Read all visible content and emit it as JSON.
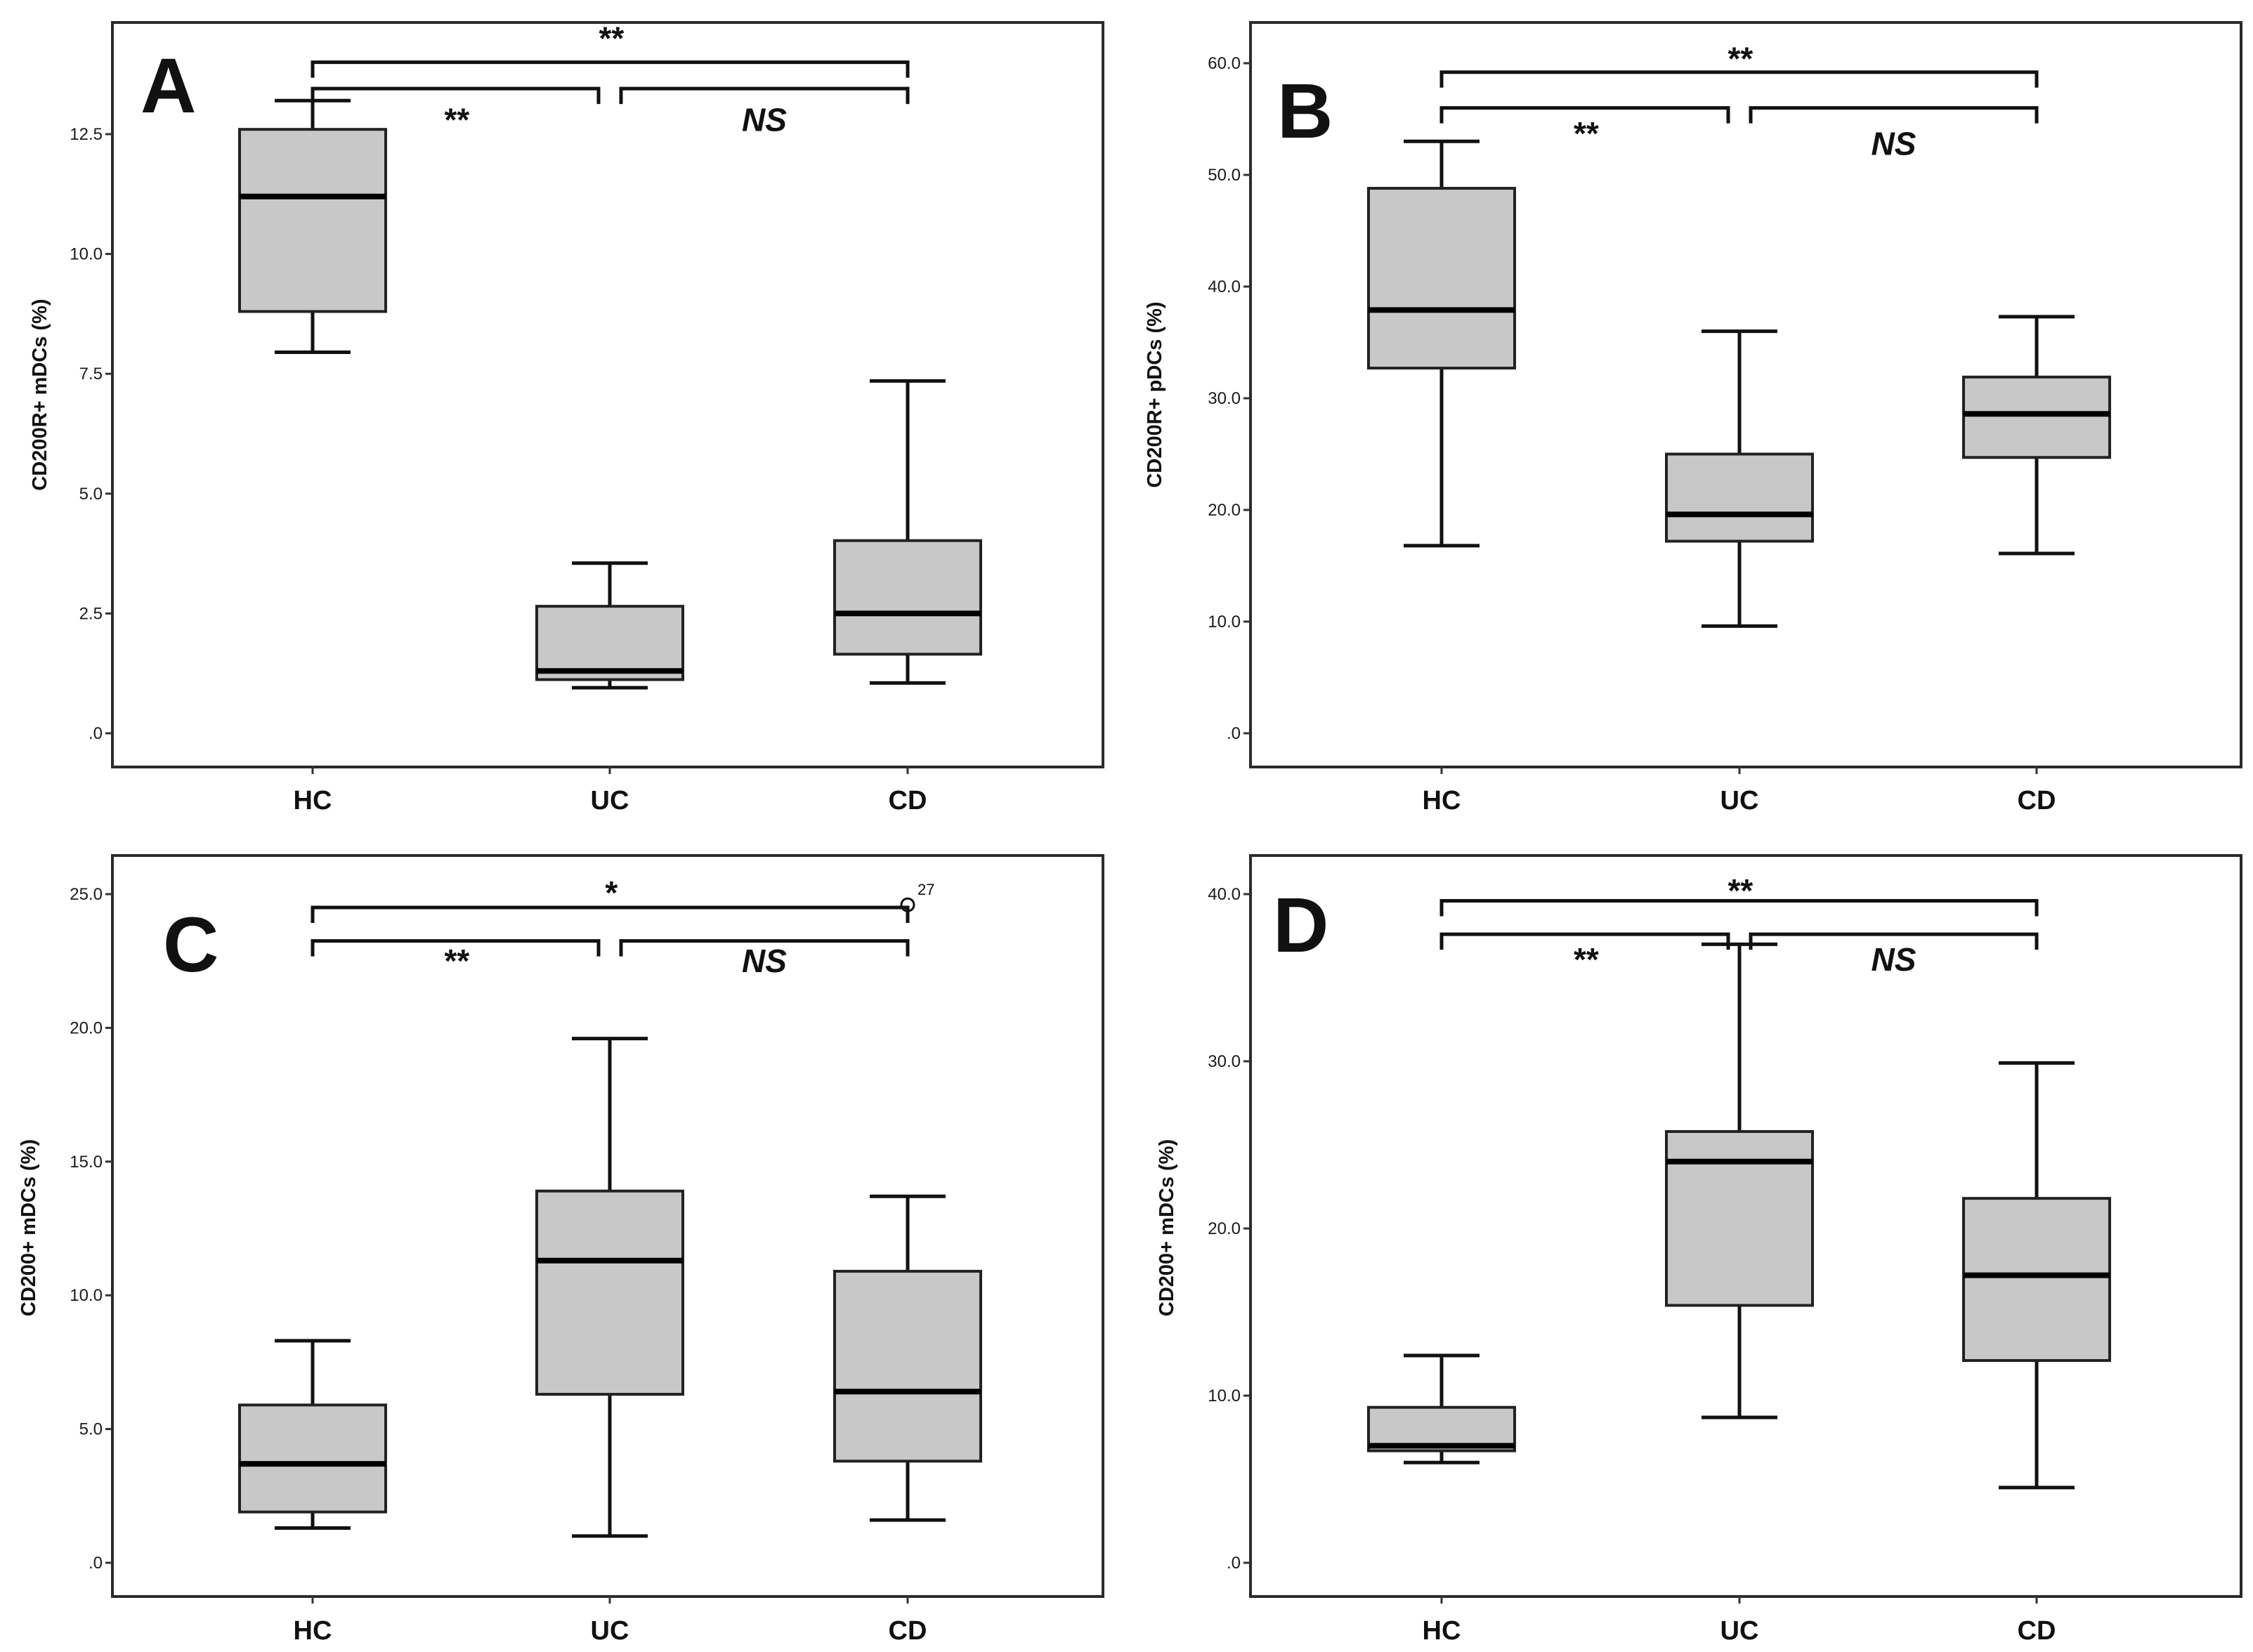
{
  "chart_data": [
    {
      "type": "boxplot",
      "panel": "A",
      "ylabel": "CD200R+ mDCs (%)",
      "ylim": [
        0,
        15
      ],
      "ticks": [
        0,
        2.5,
        5,
        7.5,
        10,
        12.5
      ],
      "tick_labels": [
        ".0",
        "2.5",
        "5.0",
        "7.5",
        "10.0",
        "12.5"
      ],
      "categories": [
        "HC",
        "UC",
        "CD"
      ],
      "boxes": [
        {
          "category": "HC",
          "min": 7.95,
          "q1": 8.8,
          "median": 11.2,
          "q3": 12.6,
          "max": 13.2
        },
        {
          "category": "UC",
          "min": 0.95,
          "q1": 1.12,
          "median": 1.3,
          "q3": 2.65,
          "max": 3.55
        },
        {
          "category": "CD",
          "min": 1.05,
          "q1": 1.65,
          "median": 2.5,
          "q3": 4.02,
          "max": 7.35
        }
      ],
      "outliers": [],
      "significance": [
        {
          "from": "HC",
          "to": "CD",
          "label": "**",
          "bracket_y": 14.0,
          "label_y": 14.5
        },
        {
          "from": "HC",
          "to": "UC",
          "label": "**",
          "bracket_y": 13.45,
          "label_y": 12.8
        },
        {
          "from": "UC",
          "to": "CD",
          "label": "NS",
          "bracket_y": 13.45,
          "label_y": 12.8
        }
      ]
    },
    {
      "type": "boxplot",
      "panel": "B",
      "ylabel": "CD200R+ pDCs (%)",
      "ylim": [
        0,
        63
      ],
      "ticks": [
        0,
        10,
        20,
        30,
        40,
        50,
        60
      ],
      "tick_labels": [
        ".0",
        "10.0",
        "20.0",
        "30.0",
        "40.0",
        "50.0",
        "60.0"
      ],
      "categories": [
        "HC",
        "UC",
        "CD"
      ],
      "boxes": [
        {
          "category": "HC",
          "min": 16.8,
          "q1": 32.7,
          "median": 37.9,
          "q3": 48.8,
          "max": 53.0
        },
        {
          "category": "UC",
          "min": 9.6,
          "q1": 17.2,
          "median": 19.6,
          "q3": 25.0,
          "max": 36.0
        },
        {
          "category": "CD",
          "min": 16.1,
          "q1": 24.7,
          "median": 28.6,
          "q3": 31.9,
          "max": 37.3
        }
      ],
      "outliers": [],
      "significance": [
        {
          "from": "HC",
          "to": "CD",
          "label": "**",
          "bracket_y": 59.2,
          "label_y": 60.4
        },
        {
          "from": "HC",
          "to": "UC",
          "label": "**",
          "bracket_y": 56.0,
          "label_y": 53.7
        },
        {
          "from": "UC",
          "to": "CD",
          "label": "NS",
          "bracket_y": 56.0,
          "label_y": 52.8
        }
      ]
    },
    {
      "type": "boxplot",
      "panel": "C",
      "ylabel": "CD200+ mDCs (%)",
      "ylim": [
        0,
        26.5
      ],
      "ticks": [
        0,
        5,
        10,
        15,
        20,
        25
      ],
      "tick_labels": [
        ".0",
        "5.0",
        "10.0",
        "15.0",
        "20.0",
        "25.0"
      ],
      "categories": [
        "HC",
        "UC",
        "CD"
      ],
      "boxes": [
        {
          "category": "HC",
          "min": 1.3,
          "q1": 1.9,
          "median": 3.7,
          "q3": 5.9,
          "max": 8.3
        },
        {
          "category": "UC",
          "min": 1.0,
          "q1": 6.3,
          "median": 11.3,
          "q3": 13.9,
          "max": 19.6
        },
        {
          "category": "CD",
          "min": 1.6,
          "q1": 3.8,
          "median": 6.4,
          "q3": 10.9,
          "max": 13.7
        }
      ],
      "outliers": [
        {
          "category": "CD",
          "value": 24.6,
          "label": "27"
        }
      ],
      "significance": [
        {
          "from": "HC",
          "to": "CD",
          "label": "*",
          "bracket_y": 24.5,
          "label_y": 25.05
        },
        {
          "from": "HC",
          "to": "UC",
          "label": "**",
          "bracket_y": 23.25,
          "label_y": 22.5
        },
        {
          "from": "UC",
          "to": "CD",
          "label": "NS",
          "bracket_y": 23.25,
          "label_y": 22.5
        }
      ]
    },
    {
      "type": "boxplot",
      "panel": "D",
      "ylabel": "CD200+ mDCs (%)",
      "ylim": [
        0,
        41.5
      ],
      "ticks": [
        0,
        10,
        20,
        30,
        40
      ],
      "tick_labels": [
        ".0",
        "10.0",
        "20.0",
        "30.0",
        "40.0"
      ],
      "categories": [
        "HC",
        "UC",
        "CD"
      ],
      "boxes": [
        {
          "category": "HC",
          "min": 6.0,
          "q1": 6.7,
          "median": 7.0,
          "q3": 9.3,
          "max": 12.4
        },
        {
          "category": "UC",
          "min": 8.7,
          "q1": 15.4,
          "median": 24.0,
          "q3": 25.8,
          "max": 37.0
        },
        {
          "category": "CD",
          "min": 4.5,
          "q1": 12.1,
          "median": 17.2,
          "q3": 21.8,
          "max": 29.9
        }
      ],
      "outliers": [],
      "significance": [
        {
          "from": "HC",
          "to": "CD",
          "label": "**",
          "bracket_y": 39.6,
          "label_y": 40.2
        },
        {
          "from": "HC",
          "to": "UC",
          "label": "**",
          "bracket_y": 37.6,
          "label_y": 36.1
        },
        {
          "from": "UC",
          "to": "CD",
          "label": "NS",
          "bracket_y": 37.6,
          "label_y": 36.1
        }
      ]
    }
  ]
}
